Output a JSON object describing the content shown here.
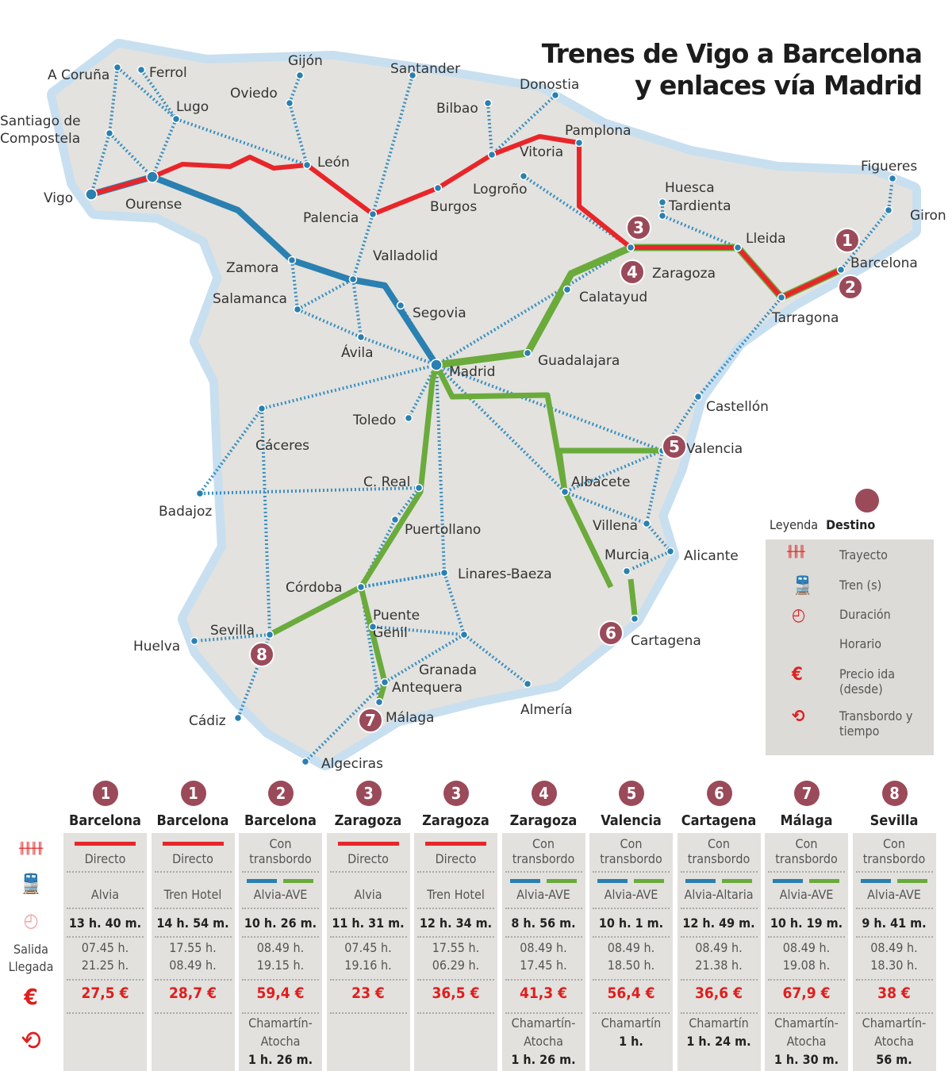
{
  "title": [
    "Trenes de Vigo a Barcelona",
    "y enlaces vía Madrid"
  ],
  "colors": {
    "direct_route": "#e8262a",
    "alvia": "#2a80b0",
    "ave": "#6aab3c",
    "network": "#3a8fc0",
    "destination": "#9b4a5a",
    "land": "#e3e2de",
    "sea_halo": "#c8dff0"
  },
  "map": {
    "cities": [
      "A Coruña",
      "Ferrol",
      "Lugo",
      "Santiago de",
      "Compostela",
      "Vigo",
      "Ourense",
      "Gijón",
      "Oviedo",
      "León",
      "Palencia",
      "Valladolid",
      "Zamora",
      "Salamanca",
      "Ávila",
      "Segovia",
      "Madrid",
      "Toledo",
      "Santander",
      "Bilbao",
      "Donostia",
      "Vitoria",
      "Pamplona",
      "Logroño",
      "Burgos",
      "Huesca",
      "Tardienta",
      "Zaragoza",
      "Lleida",
      "Barcelona",
      "Figueres",
      "Giron",
      "Tarragona",
      "Calatayud",
      "Guadalajara",
      "Castellón",
      "Valencia",
      "Albacete",
      "Villena",
      "Alicante",
      "Murcia",
      "Cartagena",
      "Cáceres",
      "Badajoz",
      "C. Real",
      "Puertollano",
      "Linares-Baeza",
      "Córdoba",
      "Sevilla",
      "Huelva",
      "Cádiz",
      "Puente",
      "Genil",
      "Granada",
      "Antequera",
      "Málaga",
      "Almería",
      "Algeciras"
    ],
    "destination_markers": [
      "1",
      "2",
      "3",
      "4",
      "5",
      "6",
      "7",
      "8"
    ]
  },
  "legend": {
    "label": "Leyenda",
    "destination": "Destino",
    "items": [
      {
        "icon": "track-icon",
        "label": "Trayecto"
      },
      {
        "icon": "train-icon",
        "label": "Tren (s)"
      },
      {
        "icon": "clock-icon",
        "label": "Duración"
      },
      {
        "icon": "",
        "label": "Horario"
      },
      {
        "icon": "euro-icon",
        "label": "Precio ida (desde)"
      },
      {
        "icon": "transfer-icon",
        "label": "Transbordo y tiempo"
      }
    ]
  },
  "table": {
    "row_labels": {
      "schedule": [
        "Salida",
        "Llegada"
      ],
      "price_symbol": "€"
    },
    "columns": [
      {
        "num": "1",
        "dest": "Barcelona",
        "route": "Directo",
        "type": "direct",
        "train": "Alvia",
        "duration": "13 h. 40 m.",
        "departure": "07.45 h.",
        "arrival": "21.25 h.",
        "price": "27,5 €",
        "transfer": []
      },
      {
        "num": "1",
        "dest": "Barcelona",
        "route": "Directo",
        "type": "direct",
        "train": "Tren Hotel",
        "duration": "14 h. 54 m.",
        "departure": "17.55 h.",
        "arrival": "08.49 h.",
        "price": "28,7 €",
        "transfer": []
      },
      {
        "num": "2",
        "dest": "Barcelona",
        "route": "Con transbordo",
        "type": "transfer",
        "train": "Alvia-AVE",
        "duration": "10 h. 26 m.",
        "departure": "08.49 h.",
        "arrival": "19.15 h.",
        "price": "59,4 €",
        "transfer": [
          "Chamartín-",
          "Atocha",
          "1 h. 26 m."
        ]
      },
      {
        "num": "3",
        "dest": "Zaragoza",
        "route": "Directo",
        "type": "direct",
        "train": "Alvia",
        "duration": "11 h. 31 m.",
        "departure": "07.45 h.",
        "arrival": "19.16 h.",
        "price": "23 €",
        "transfer": []
      },
      {
        "num": "3",
        "dest": "Zaragoza",
        "route": "Directo",
        "type": "direct",
        "train": "Tren Hotel",
        "duration": "12 h. 34 m.",
        "departure": "17.55 h.",
        "arrival": "06.29 h.",
        "price": "36,5 €",
        "transfer": []
      },
      {
        "num": "4",
        "dest": "Zaragoza",
        "route": "Con transbordo",
        "type": "transfer",
        "train": "Alvia-AVE",
        "duration": "8 h. 56 m.",
        "departure": "08.49 h.",
        "arrival": "17.45 h.",
        "price": "41,3 €",
        "transfer": [
          "Chamartín-",
          "Atocha",
          "1 h. 26 m."
        ]
      },
      {
        "num": "5",
        "dest": "Valencia",
        "route": "Con transbordo",
        "type": "transfer",
        "train": "Alvia-AVE",
        "duration": "10 h. 1 m.",
        "departure": "08.49 h.",
        "arrival": "18.50 h.",
        "price": "56,4 €",
        "transfer": [
          "Chamartín",
          "1 h.",
          ""
        ]
      },
      {
        "num": "6",
        "dest": "Cartagena",
        "route": "Con transbordo",
        "type": "transfer",
        "train": "Alvia-Altaria",
        "duration": "12 h. 49 m.",
        "departure": "08.49 h.",
        "arrival": "21.38 h.",
        "price": "36,6 €",
        "transfer": [
          "Chamartín",
          "1 h. 24 m.",
          ""
        ]
      },
      {
        "num": "7",
        "dest": "Málaga",
        "route": "Con transbordo",
        "type": "transfer",
        "train": "Alvia-AVE",
        "duration": "10 h. 19 m.",
        "departure": "08.49 h.",
        "arrival": "19.08 h.",
        "price": "67,9 €",
        "transfer": [
          "Chamartín-",
          "Atocha",
          "1 h. 30 m."
        ]
      },
      {
        "num": "8",
        "dest": "Sevilla",
        "route": "Con transbordo",
        "type": "transfer",
        "train": "Alvia-AVE",
        "duration": "9 h. 41 m.",
        "departure": "08.49 h.",
        "arrival": "18.30 h.",
        "price": "38 €",
        "transfer": [
          "Chamartín-",
          "Atocha",
          "56 m."
        ]
      }
    ]
  }
}
